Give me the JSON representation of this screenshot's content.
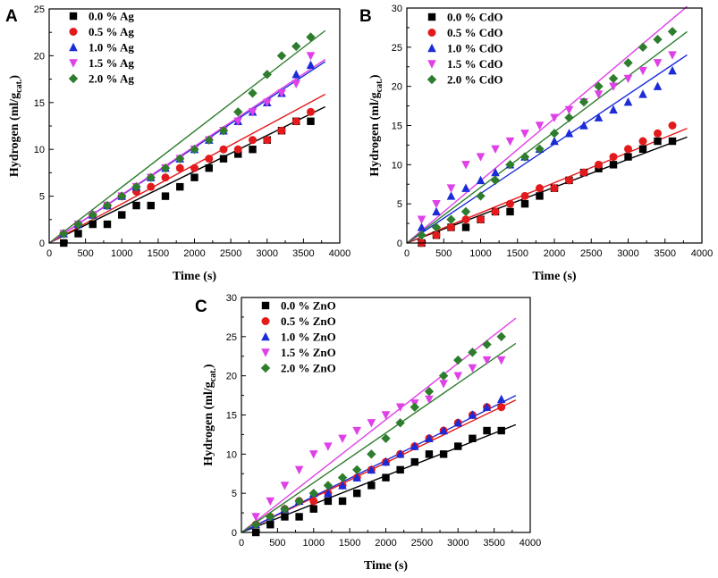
{
  "chart_data": [
    {
      "panel": "A",
      "type": "scatter",
      "xlabel": "Time (s)",
      "ylabel_main": "Hydrogen (ml/g",
      "ylabel_sub": "cat.",
      "ylabel_end": ")",
      "xlim": [
        0,
        4000
      ],
      "ylim": [
        0,
        25
      ],
      "xticks": [
        0,
        500,
        1000,
        1500,
        2000,
        2500,
        3000,
        3500,
        4000
      ],
      "yticks": [
        0,
        5,
        10,
        15,
        20,
        25
      ],
      "fit_lines": true,
      "series": [
        {
          "name": "0.0 % Ag",
          "marker": "square",
          "color": "#000000",
          "x": [
            200,
            400,
            600,
            800,
            1000,
            1200,
            1400,
            1600,
            1800,
            2000,
            2200,
            2400,
            2600,
            2800,
            3000,
            3200,
            3400,
            3600
          ],
          "y": [
            0,
            1,
            2,
            2,
            3,
            4,
            4,
            5,
            6,
            7,
            8,
            9,
            9.5,
            10,
            11,
            12,
            13,
            13
          ],
          "fit_slope": 0.00383
        },
        {
          "name": "0.5 % Ag",
          "marker": "circle",
          "color": "#e31a1c",
          "x": [
            200,
            400,
            600,
            800,
            1000,
            1200,
            1400,
            1600,
            1800,
            2000,
            2200,
            2400,
            2600,
            2800,
            3000,
            3200,
            3400,
            3600
          ],
          "y": [
            1,
            2,
            3,
            4,
            5,
            5.5,
            6,
            7,
            8,
            8,
            9,
            10,
            10,
            11,
            11,
            12,
            13,
            14
          ],
          "fit_slope": 0.00418
        },
        {
          "name": "1.0 % Ag",
          "marker": "triangle-up",
          "color": "#1a2bd8",
          "x": [
            200,
            400,
            600,
            800,
            1000,
            1200,
            1400,
            1600,
            1800,
            2000,
            2200,
            2400,
            2600,
            2800,
            3000,
            3200,
            3400,
            3600
          ],
          "y": [
            1,
            2,
            3,
            4,
            5,
            6,
            7,
            8,
            9,
            10,
            11,
            12,
            13,
            14,
            15,
            16,
            18,
            19
          ],
          "fit_slope": 0.0051
        },
        {
          "name": "1.5 % Ag",
          "marker": "triangle-down",
          "color": "#e040e8",
          "x": [
            200,
            400,
            600,
            800,
            1000,
            1200,
            1400,
            1600,
            1800,
            2000,
            2200,
            2400,
            2600,
            2800,
            3000,
            3200,
            3400,
            3600
          ],
          "y": [
            1,
            2,
            3,
            4,
            5,
            6,
            7,
            8,
            9,
            10,
            11,
            12,
            13,
            14,
            15,
            16,
            17,
            20
          ],
          "fit_slope": 0.00516
        },
        {
          "name": "2.0 % Ag",
          "marker": "diamond",
          "color": "#2e7d2e",
          "x": [
            200,
            400,
            600,
            800,
            1000,
            1200,
            1400,
            1600,
            1800,
            2000,
            2200,
            2400,
            2600,
            2800,
            3000,
            3200,
            3400,
            3600
          ],
          "y": [
            1,
            2,
            3,
            4,
            5,
            6,
            7,
            8,
            9,
            10,
            11,
            12,
            14,
            16,
            18,
            20,
            21,
            22
          ],
          "fit_slope": 0.00597
        }
      ]
    },
    {
      "panel": "B",
      "type": "scatter",
      "xlabel": "Time (s)",
      "ylabel_main": "Hydrogen (ml/g",
      "ylabel_sub": "cat.",
      "ylabel_end": ")",
      "xlim": [
        0,
        4000
      ],
      "ylim": [
        0,
        30
      ],
      "xticks": [
        0,
        500,
        1000,
        1500,
        2000,
        2500,
        3000,
        3500,
        4000
      ],
      "yticks": [
        0,
        5,
        10,
        15,
        20,
        25,
        30
      ],
      "fit_lines": true,
      "series": [
        {
          "name": "0.0 % CdO",
          "marker": "square",
          "color": "#000000",
          "x": [
            200,
            400,
            600,
            800,
            1000,
            1200,
            1400,
            1600,
            1800,
            2000,
            2200,
            2400,
            2600,
            2800,
            3000,
            3200,
            3400,
            3600
          ],
          "y": [
            0,
            1,
            2,
            2,
            3,
            4,
            4,
            5,
            6,
            7,
            8,
            9,
            9.5,
            10,
            11,
            12,
            13,
            13
          ],
          "fit_slope": 0.00356
        },
        {
          "name": "0.5 % CdO",
          "marker": "circle",
          "color": "#e31a1c",
          "x": [
            200,
            400,
            600,
            800,
            1000,
            1200,
            1400,
            1600,
            1800,
            2000,
            2200,
            2400,
            2600,
            2800,
            3000,
            3200,
            3400,
            3600
          ],
          "y": [
            0,
            1,
            2,
            3,
            3,
            4,
            5,
            6,
            7,
            7,
            8,
            9,
            10,
            11,
            12,
            13,
            14,
            15
          ],
          "fit_slope": 0.00385
        },
        {
          "name": "1.0 % CdO",
          "marker": "triangle-up",
          "color": "#1a2bd8",
          "x": [
            200,
            400,
            600,
            800,
            1000,
            1200,
            1400,
            1600,
            1800,
            2000,
            2200,
            2400,
            2600,
            2800,
            3000,
            3200,
            3400,
            3600
          ],
          "y": [
            2,
            4,
            6,
            7,
            8,
            9,
            10,
            11,
            12,
            13,
            14,
            15,
            16,
            17,
            18,
            19,
            20,
            22
          ],
          "fit_slope": 0.00632
        },
        {
          "name": "1.5 % CdO",
          "marker": "triangle-down",
          "color": "#e040e8",
          "x": [
            200,
            400,
            600,
            800,
            1000,
            1200,
            1400,
            1600,
            1800,
            2000,
            2200,
            2400,
            2600,
            2800,
            3000,
            3200,
            3400,
            3600
          ],
          "y": [
            3,
            5,
            7,
            10,
            11,
            12,
            13,
            14,
            15,
            16,
            17,
            18,
            19,
            20,
            21,
            22,
            23,
            24
          ],
          "fit_slope": 0.00795
        },
        {
          "name": "2.0 % CdO",
          "marker": "diamond",
          "color": "#2e7d2e",
          "x": [
            200,
            400,
            600,
            800,
            1000,
            1200,
            1400,
            1600,
            1800,
            2000,
            2200,
            2400,
            2600,
            2800,
            3000,
            3200,
            3400,
            3600
          ],
          "y": [
            1,
            2,
            3,
            4,
            6,
            8,
            10,
            11,
            12,
            14,
            16,
            18,
            20,
            21,
            23,
            25,
            26,
            27
          ],
          "fit_slope": 0.0071
        }
      ]
    },
    {
      "panel": "C",
      "type": "scatter",
      "xlabel": "Time (s)",
      "ylabel_main": "Hydrogen (ml/g",
      "ylabel_sub": "cat.",
      "ylabel_end": ")",
      "xlim": [
        0,
        4000
      ],
      "ylim": [
        0,
        30
      ],
      "xticks": [
        0,
        500,
        1000,
        1500,
        2000,
        2500,
        3000,
        3500,
        4000
      ],
      "yticks": [
        0,
        5,
        10,
        15,
        20,
        25,
        30
      ],
      "fit_lines": true,
      "series": [
        {
          "name": "0.0 % ZnO",
          "marker": "square",
          "color": "#000000",
          "x": [
            200,
            400,
            600,
            800,
            1000,
            1200,
            1400,
            1600,
            1800,
            2000,
            2200,
            2400,
            2600,
            2800,
            3000,
            3200,
            3400,
            3600
          ],
          "y": [
            0,
            1,
            2,
            2,
            3,
            4,
            4,
            5,
            6,
            7,
            8,
            9,
            10,
            10,
            11,
            12,
            13,
            13
          ],
          "fit_slope": 0.00362
        },
        {
          "name": "0.5 % ZnO",
          "marker": "circle",
          "color": "#e31a1c",
          "x": [
            200,
            400,
            600,
            800,
            1000,
            1200,
            1400,
            1600,
            1800,
            2000,
            2200,
            2400,
            2600,
            2800,
            3000,
            3200,
            3400,
            3600
          ],
          "y": [
            1,
            2,
            3,
            4,
            4,
            5,
            6,
            7,
            8,
            9,
            10,
            11,
            12,
            13,
            14,
            15,
            16,
            16
          ],
          "fit_slope": 0.00445
        },
        {
          "name": "1.0 % ZnO",
          "marker": "triangle-up",
          "color": "#1a2bd8",
          "x": [
            200,
            400,
            600,
            800,
            1000,
            1200,
            1400,
            1600,
            1800,
            2000,
            2200,
            2400,
            2600,
            2800,
            3000,
            3200,
            3400,
            3600
          ],
          "y": [
            1,
            2,
            3,
            4,
            5,
            5,
            6,
            7,
            8,
            9,
            10,
            11,
            12,
            13,
            14,
            15,
            16,
            17
          ],
          "fit_slope": 0.0046
        },
        {
          "name": "1.5 % ZnO",
          "marker": "triangle-down",
          "color": "#e040e8",
          "x": [
            200,
            400,
            600,
            800,
            1000,
            1200,
            1400,
            1600,
            1800,
            2000,
            2200,
            2400,
            2600,
            2800,
            3000,
            3200,
            3400,
            3600
          ],
          "y": [
            2,
            4,
            6,
            8,
            10,
            11,
            12,
            13,
            14,
            15,
            16,
            16.5,
            17,
            19,
            20,
            21,
            22,
            22
          ],
          "fit_slope": 0.0072
        },
        {
          "name": "2.0 % ZnO",
          "marker": "diamond",
          "color": "#2e7d2e",
          "x": [
            200,
            400,
            600,
            800,
            1000,
            1200,
            1400,
            1600,
            1800,
            2000,
            2200,
            2400,
            2600,
            2800,
            3000,
            3200,
            3400,
            3600
          ],
          "y": [
            1,
            2,
            3,
            4,
            5,
            6,
            7,
            8,
            10,
            12,
            14,
            16,
            18,
            20,
            22,
            23,
            24,
            25
          ],
          "fit_slope": 0.00635
        }
      ]
    }
  ]
}
